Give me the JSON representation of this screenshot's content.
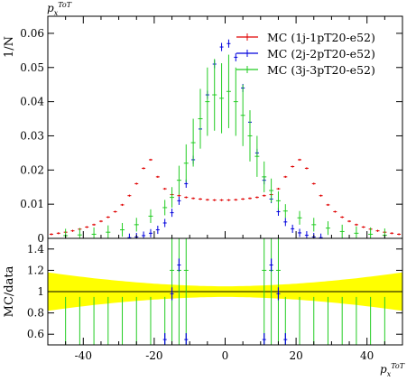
{
  "chart_data": [
    {
      "type": "scatter",
      "panel": "main",
      "ylabel": "1/N",
      "xlabel_top": "p_x^ToT",
      "xlim": [
        -50,
        50
      ],
      "ylim": [
        0,
        0.065
      ],
      "yticks": [
        "0",
        "0.01",
        "0.02",
        "0.03",
        "0.04",
        "0.05",
        "0.06"
      ],
      "legend_position": "top-right",
      "series": [
        {
          "name": "MC (1j-1pT20-e52)",
          "color": "#e00000",
          "x": [
            -49,
            -47,
            -45,
            -43,
            -41,
            -39,
            -37,
            -35,
            -33,
            -31,
            -29,
            -27,
            -25,
            -23,
            -21,
            -19,
            -17,
            -15,
            -13,
            -11,
            -9,
            -7,
            -5,
            -3,
            -1,
            1,
            3,
            5,
            7,
            9,
            11,
            13,
            15,
            17,
            19,
            21,
            23,
            25,
            27,
            29,
            31,
            33,
            35,
            37,
            39,
            41,
            43,
            45,
            47,
            49
          ],
          "y": [
            0.0012,
            0.0015,
            0.0018,
            0.0022,
            0.0027,
            0.0033,
            0.004,
            0.005,
            0.0062,
            0.0078,
            0.0098,
            0.0125,
            0.016,
            0.0205,
            0.023,
            0.018,
            0.0145,
            0.0128,
            0.0125,
            0.012,
            0.0117,
            0.0115,
            0.0113,
            0.0112,
            0.0112,
            0.0112,
            0.0113,
            0.0115,
            0.0117,
            0.012,
            0.0125,
            0.0128,
            0.0145,
            0.018,
            0.021,
            0.023,
            0.0205,
            0.016,
            0.0125,
            0.0098,
            0.0078,
            0.0062,
            0.005,
            0.004,
            0.0033,
            0.0027,
            0.0022,
            0.0018,
            0.0015,
            0.0012
          ]
        },
        {
          "name": "MC (2j-2pT20-e52)",
          "color": "#0000dd",
          "x": [
            -27,
            -25,
            -23,
            -21,
            -19,
            -17,
            -15,
            -13,
            -11,
            -9,
            -7,
            -5,
            -3,
            -1,
            1,
            3,
            5,
            7,
            9,
            11,
            13,
            15,
            17,
            19,
            21,
            23,
            25,
            27
          ],
          "y": [
            0.0002,
            0.0004,
            0.0008,
            0.0015,
            0.0025,
            0.0045,
            0.0075,
            0.011,
            0.016,
            0.023,
            0.032,
            0.042,
            0.051,
            0.056,
            0.057,
            0.053,
            0.044,
            0.034,
            0.025,
            0.017,
            0.0115,
            0.0078,
            0.0048,
            0.0028,
            0.0016,
            0.0009,
            0.0004,
            0.0002
          ]
        },
        {
          "name": "MC (3j-3pT20-e52)",
          "color": "#22cc22",
          "x": [
            -45,
            -41,
            -37,
            -33,
            -29,
            -25,
            -21,
            -17,
            -15,
            -13,
            -11,
            -9,
            -7,
            -5,
            -3,
            -1,
            1,
            3,
            5,
            7,
            9,
            11,
            13,
            15,
            17,
            21,
            25,
            29,
            33,
            37,
            41,
            45
          ],
          "y": [
            0.0008,
            0.001,
            0.0012,
            0.0018,
            0.0025,
            0.004,
            0.0065,
            0.009,
            0.012,
            0.017,
            0.022,
            0.028,
            0.035,
            0.04,
            0.042,
            0.041,
            0.043,
            0.04,
            0.036,
            0.03,
            0.024,
            0.018,
            0.014,
            0.011,
            0.008,
            0.006,
            0.004,
            0.003,
            0.002,
            0.0015,
            0.0012,
            0.0009
          ]
        }
      ]
    },
    {
      "type": "scatter",
      "panel": "ratio",
      "ylabel": "MC/data",
      "xlabel": "p_x^ToT",
      "xlim": [
        -50,
        50
      ],
      "ylim": [
        0.5,
        1.5
      ],
      "yticks": [
        "0.6",
        "0.8",
        "1",
        "1.2",
        "1.4"
      ],
      "xticks": [
        "-40",
        "-20",
        "0",
        "20",
        "40"
      ],
      "band_color": "#ffff00"
    }
  ]
}
